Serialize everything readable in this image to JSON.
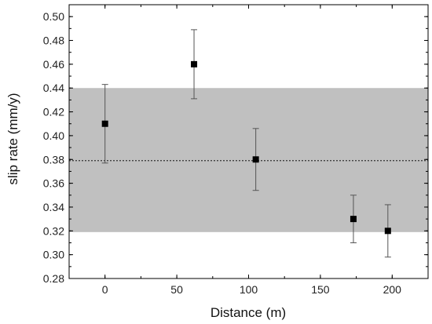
{
  "chart_data": {
    "type": "scatter",
    "title": "",
    "xlabel": "Distance (m)",
    "ylabel": "slip rate (mm/y)",
    "xlim": [
      -25,
      225
    ],
    "ylim": [
      0.28,
      0.51
    ],
    "x_ticks": [
      0,
      50,
      100,
      150,
      200
    ],
    "x_tick_labels": [
      "0",
      "50",
      "100",
      "150",
      "200"
    ],
    "y_ticks": [
      0.28,
      0.3,
      0.32,
      0.34,
      0.36,
      0.38,
      0.4,
      0.42,
      0.44,
      0.46,
      0.48,
      0.5
    ],
    "y_tick_labels": [
      "0.28",
      "0.30",
      "0.32",
      "0.34",
      "0.36",
      "0.38",
      "0.40",
      "0.42",
      "0.44",
      "0.46",
      "0.48",
      "0.50"
    ],
    "grid": false,
    "legend": "none",
    "series": [
      {
        "x": [
          0,
          62,
          105,
          173,
          197
        ],
        "y": [
          0.41,
          0.46,
          0.38,
          0.33,
          0.32
        ],
        "y_err_low": [
          0.377,
          0.431,
          0.354,
          0.31,
          0.298
        ],
        "y_err_high": [
          0.443,
          0.489,
          0.406,
          0.35,
          0.342
        ]
      }
    ],
    "band": {
      "y_low": 0.319,
      "y_high": 0.44
    },
    "mean_line": 0.379,
    "colors": {
      "band": "#c0c0c0",
      "marker": "#000000",
      "errorbar": "#555555",
      "axis": "#000000"
    }
  }
}
